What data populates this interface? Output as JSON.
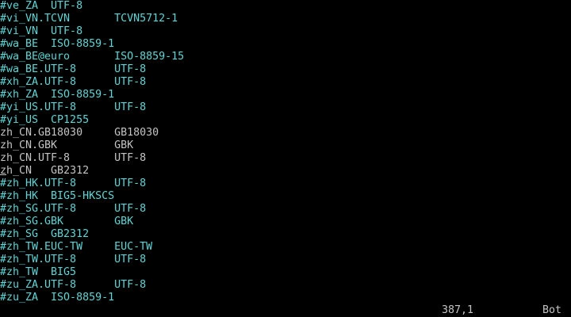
{
  "buffer_lines": [
    {
      "text": "#ve_ZA  UTF-8",
      "comment": true
    },
    {
      "text": "#vi_VN.TCVN       TCVN5712-1",
      "comment": true
    },
    {
      "text": "#vi_VN  UTF-8",
      "comment": true
    },
    {
      "text": "#wa_BE  ISO-8859-1",
      "comment": true
    },
    {
      "text": "#wa_BE@euro       ISO-8859-15",
      "comment": true
    },
    {
      "text": "#wa_BE.UTF-8      UTF-8",
      "comment": true
    },
    {
      "text": "#xh_ZA.UTF-8      UTF-8",
      "comment": true
    },
    {
      "text": "#xh_ZA  ISO-8859-1",
      "comment": true
    },
    {
      "text": "#yi_US.UTF-8      UTF-8",
      "comment": true
    },
    {
      "text": "#yi_US  CP1255",
      "comment": true
    },
    {
      "text": "zh_CN.GB18030     GB18030",
      "comment": false
    },
    {
      "text": "zh_CN.GBK         GBK",
      "comment": false
    },
    {
      "text": "zh_CN.UTF-8       UTF-8",
      "comment": false
    },
    {
      "text": "zh_CN   GB2312",
      "comment": false,
      "cursor": true
    },
    {
      "text": "#zh_HK.UTF-8      UTF-8",
      "comment": true
    },
    {
      "text": "#zh_HK  BIG5-HKSCS",
      "comment": true
    },
    {
      "text": "#zh_SG.UTF-8      UTF-8",
      "comment": true
    },
    {
      "text": "#zh_SG.GBK        GBK",
      "comment": true
    },
    {
      "text": "#zh_SG  GB2312",
      "comment": true
    },
    {
      "text": "#zh_TW.EUC-TW     EUC-TW",
      "comment": true
    },
    {
      "text": "#zh_TW.UTF-8      UTF-8",
      "comment": true
    },
    {
      "text": "#zh_TW  BIG5",
      "comment": true
    },
    {
      "text": "#zu_ZA.UTF-8      UTF-8",
      "comment": true
    },
    {
      "text": "#zu_ZA  ISO-8859-1",
      "comment": true
    }
  ],
  "status": {
    "position": "387,1",
    "scroll": "Bot"
  },
  "colors": {
    "background": "#000000",
    "comment": "#5cd6d6",
    "text": "#c4c4c4"
  }
}
